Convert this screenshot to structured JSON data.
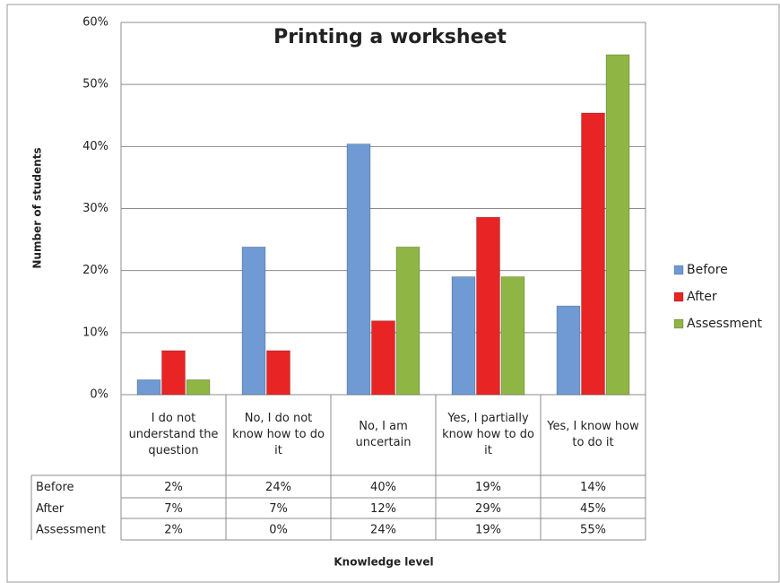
{
  "chart_data": {
    "type": "bar",
    "title": "Printing a worksheet",
    "y_label": "Number of students",
    "x_label": "Knowledge level",
    "categories": [
      "I do not understand the question",
      "No, I do not know how to do it",
      "No, I am uncertain",
      "Yes, I partially know how to do it",
      "Yes, I know how to do it"
    ],
    "series": [
      {
        "name": "Before",
        "color": "#6f9ad3",
        "values": [
          2.4,
          23.8,
          40.4,
          19.0,
          14.3
        ],
        "value_labels": [
          "2%",
          "24%",
          "40%",
          "19%",
          "14%"
        ]
      },
      {
        "name": "After",
        "color": "#e82424",
        "values": [
          7.1,
          7.1,
          11.9,
          28.6,
          45.4
        ],
        "value_labels": [
          "7%",
          "7%",
          "12%",
          "29%",
          "45%"
        ]
      },
      {
        "name": "Assessment",
        "color": "#8fb545",
        "values": [
          2.4,
          0,
          23.8,
          19.0,
          54.8
        ],
        "value_labels": [
          "2%",
          "0%",
          "24%",
          "19%",
          "55%"
        ]
      }
    ],
    "ylim": [
      0,
      60
    ],
    "yticks": [
      {
        "value": 0,
        "label": "0%"
      },
      {
        "value": 10,
        "label": "10%"
      },
      {
        "value": 20,
        "label": "20%"
      },
      {
        "value": 30,
        "label": "30%"
      },
      {
        "value": 40,
        "label": "40%"
      },
      {
        "value": 50,
        "label": "50%"
      },
      {
        "value": 60,
        "label": "60%"
      }
    ],
    "grid": true,
    "legend": "right"
  }
}
